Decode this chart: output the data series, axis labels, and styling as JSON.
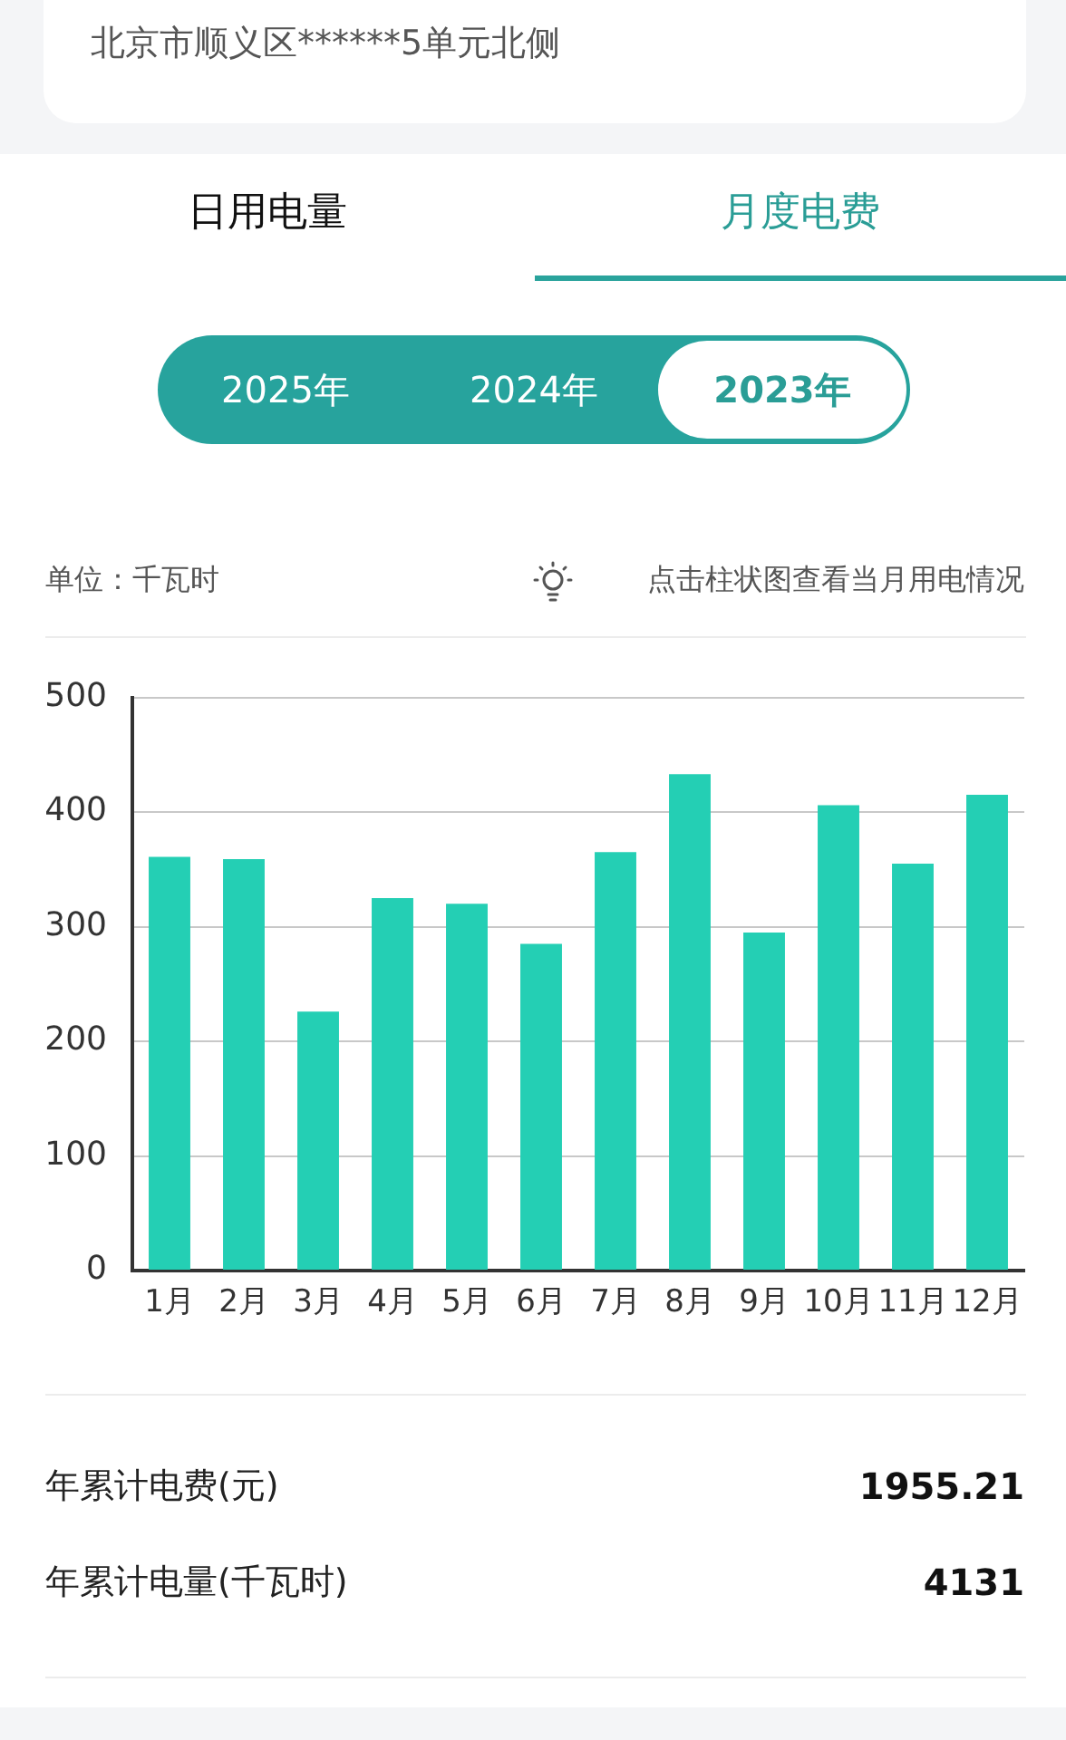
{
  "chart_data": {
    "type": "bar",
    "ylabel": "单位：千瓦时",
    "categories": [
      "1月",
      "2月",
      "3月",
      "4月",
      "5月",
      "6月",
      "7月",
      "8月",
      "9月",
      "10月",
      "11月",
      "12月"
    ],
    "values": [
      361,
      359,
      226,
      325,
      320,
      285,
      365,
      433,
      295,
      406,
      355,
      415
    ],
    "color": "#24cfb4",
    "ylim": [
      0,
      500
    ],
    "yticks": [
      0,
      100,
      200,
      300,
      400,
      500
    ],
    "grid": "y",
    "annotations": [
      "北京市顺义区******5单元北侧",
      "日用电量",
      "月度电费",
      "2025年",
      "2024年",
      "2023年",
      "点击柱状图查看当月用电情况",
      "年累计电费(元)",
      "1955.21",
      "年累计电量(千瓦时)",
      "4131"
    ]
  }
}
